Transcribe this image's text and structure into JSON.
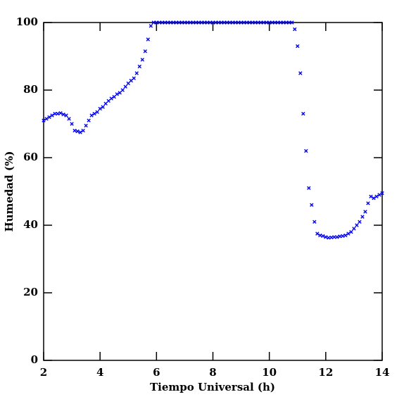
{
  "chart_data": {
    "type": "scatter",
    "x_label": "Tiempo Universal (h)",
    "y_label": "Humedad (%)",
    "xlim": [
      2,
      14
    ],
    "xticks": [
      2,
      4,
      6,
      8,
      10,
      12,
      14
    ],
    "ylim": [
      0,
      100
    ],
    "yticks": [
      0,
      20,
      40,
      60,
      80,
      100
    ],
    "color": "#0000ff",
    "x": [
      2,
      2.1,
      2.2,
      2.3,
      2.4,
      2.5,
      2.6,
      2.7,
      2.8,
      2.9,
      3,
      3.1,
      3.2,
      3.3,
      3.4,
      3.5,
      3.6,
      3.7,
      3.8,
      3.9,
      4,
      4.1,
      4.2,
      4.3,
      4.4,
      4.5,
      4.6,
      4.7,
      4.8,
      4.9,
      5,
      5.1,
      5.2,
      5.3,
      5.4,
      5.5,
      5.6,
      5.7,
      5.8,
      5.9,
      6,
      6.1,
      6.2,
      6.3,
      6.4,
      6.5,
      6.6,
      6.7,
      6.8,
      6.9,
      7,
      7.1,
      7.2,
      7.3,
      7.4,
      7.5,
      7.6,
      7.7,
      7.8,
      7.9,
      8,
      8.1,
      8.2,
      8.3,
      8.4,
      8.5,
      8.6,
      8.7,
      8.8,
      8.9,
      9,
      9.1,
      9.2,
      9.3,
      9.4,
      9.5,
      9.6,
      9.7,
      9.8,
      9.9,
      10,
      10.1,
      10.2,
      10.3,
      10.4,
      10.5,
      10.6,
      10.7,
      10.8,
      10.9,
      11,
      11.1,
      11.2,
      11.3,
      11.4,
      11.5,
      11.6,
      11.7,
      11.8,
      11.9,
      12,
      12.1,
      12.2,
      12.3,
      12.4,
      12.5,
      12.6,
      12.7,
      12.8,
      12.9,
      13,
      13.1,
      13.2,
      13.3,
      13.4,
      13.5,
      13.6,
      13.7,
      13.8,
      13.9,
      14
    ],
    "values": [
      71,
      71.5,
      72,
      72.5,
      73,
      73,
      73.2,
      72.8,
      72.5,
      71.5,
      70,
      68,
      67.8,
      67.5,
      68,
      69.5,
      71,
      72.5,
      73,
      73.5,
      74.5,
      75,
      76,
      76.8,
      77.5,
      78,
      78.8,
      79.2,
      80,
      81,
      82,
      82.8,
      83.5,
      85,
      87,
      89,
      91.5,
      95,
      99,
      100,
      100,
      100,
      100,
      100,
      100,
      100,
      100,
      100,
      100,
      100,
      100,
      100,
      100,
      100,
      100,
      100,
      100,
      100,
      100,
      100,
      100,
      100,
      100,
      100,
      100,
      100,
      100,
      100,
      100,
      100,
      100,
      100,
      100,
      100,
      100,
      100,
      100,
      100,
      100,
      100,
      100,
      100,
      100,
      100,
      100,
      100,
      100,
      100,
      100,
      98,
      93,
      85,
      73,
      62,
      51,
      46,
      41,
      37.5,
      37,
      36.8,
      36.5,
      36.3,
      36.4,
      36.5,
      36.5,
      36.7,
      36.8,
      37,
      37.5,
      38,
      39,
      40,
      41,
      42.5,
      44,
      46.5,
      48.5,
      48,
      48.5,
      49,
      49.5
    ]
  }
}
